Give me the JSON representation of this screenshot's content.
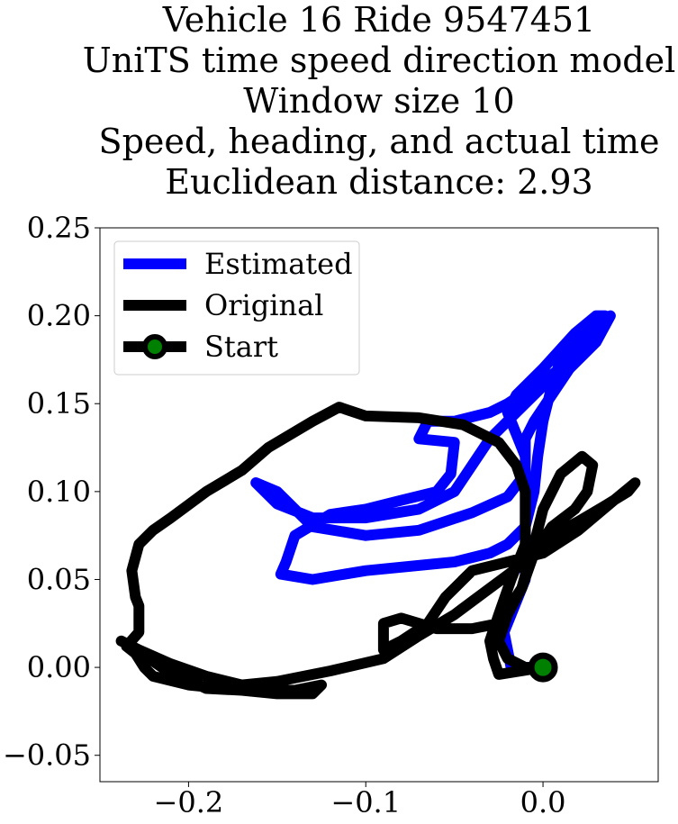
{
  "chart_data": {
    "type": "line",
    "title_lines": [
      "Vehicle 16 Ride 9547451",
      "UniTS time speed direction model",
      "Window size 10",
      "Speed, heading, and actual time",
      "Euclidean distance: 2.93"
    ],
    "xlabel": "",
    "ylabel": "",
    "xlim": [
      -0.25,
      0.065
    ],
    "ylim": [
      -0.065,
      0.25
    ],
    "xticks": [
      -0.2,
      -0.1,
      0.0
    ],
    "xtick_labels": [
      "−0.2",
      "−0.1",
      "0.0"
    ],
    "yticks": [
      -0.05,
      0.0,
      0.05,
      0.1,
      0.15,
      0.2,
      0.25
    ],
    "ytick_labels": [
      "−0.05",
      "0.00",
      "0.05",
      "0.10",
      "0.15",
      "0.20",
      "0.25"
    ],
    "grid": false,
    "legend_position": "top-left",
    "series": [
      {
        "name": "Estimated",
        "color": "#0000ff",
        "points": [
          [
            0.0,
            0.0
          ],
          [
            -0.018,
            0.0
          ],
          [
            -0.022,
            0.02
          ],
          [
            -0.01,
            0.05
          ],
          [
            -0.01,
            0.09
          ],
          [
            -0.01,
            0.12
          ],
          [
            -0.02,
            0.145
          ],
          [
            -0.015,
            0.155
          ],
          [
            0.0,
            0.17
          ],
          [
            0.018,
            0.19
          ],
          [
            0.03,
            0.2
          ],
          [
            0.035,
            0.2
          ],
          [
            0.03,
            0.19
          ],
          [
            0.015,
            0.175
          ],
          [
            0.0,
            0.16
          ],
          [
            -0.015,
            0.145
          ],
          [
            -0.03,
            0.13
          ],
          [
            -0.05,
            0.1
          ],
          [
            -0.07,
            0.09
          ],
          [
            -0.1,
            0.085
          ],
          [
            -0.13,
            0.085
          ],
          [
            -0.15,
            0.093
          ],
          [
            -0.162,
            0.105
          ],
          [
            -0.15,
            0.1
          ],
          [
            -0.135,
            0.085
          ],
          [
            -0.13,
            0.08
          ],
          [
            -0.1,
            0.075
          ],
          [
            -0.07,
            0.078
          ],
          [
            -0.04,
            0.088
          ],
          [
            -0.02,
            0.097
          ],
          [
            -0.01,
            0.11
          ],
          [
            -0.01,
            0.13
          ],
          [
            -0.005,
            0.14
          ],
          [
            0.005,
            0.155
          ],
          [
            0.015,
            0.17
          ],
          [
            0.03,
            0.185
          ],
          [
            0.038,
            0.2
          ],
          [
            0.025,
            0.185
          ],
          [
            0.01,
            0.17
          ],
          [
            -0.005,
            0.16
          ],
          [
            -0.02,
            0.15
          ],
          [
            -0.03,
            0.145
          ],
          [
            -0.05,
            0.14
          ],
          [
            -0.065,
            0.14
          ],
          [
            -0.07,
            0.13
          ],
          [
            -0.05,
            0.128
          ],
          [
            -0.052,
            0.11
          ],
          [
            -0.06,
            0.1
          ],
          [
            -0.08,
            0.095
          ],
          [
            -0.1,
            0.09
          ],
          [
            -0.12,
            0.087
          ],
          [
            -0.14,
            0.075
          ],
          [
            -0.145,
            0.06
          ],
          [
            -0.148,
            0.053
          ],
          [
            -0.13,
            0.05
          ],
          [
            -0.1,
            0.055
          ],
          [
            -0.07,
            0.058
          ],
          [
            -0.05,
            0.06
          ],
          [
            -0.03,
            0.065
          ],
          [
            -0.02,
            0.07
          ],
          [
            -0.01,
            0.08
          ],
          [
            -0.005,
            0.1
          ],
          [
            -0.003,
            0.12
          ],
          [
            0.0,
            0.14
          ],
          [
            0.005,
            0.16
          ],
          [
            0.01,
            0.175
          ],
          [
            0.02,
            0.188
          ],
          [
            0.03,
            0.2
          ]
        ]
      },
      {
        "name": "Original",
        "color": "#000000",
        "points": [
          [
            0.0,
            0.0
          ],
          [
            -0.025,
            -0.004
          ],
          [
            -0.028,
            0.005
          ],
          [
            -0.03,
            0.015
          ],
          [
            -0.025,
            0.03
          ],
          [
            -0.018,
            0.05
          ],
          [
            -0.01,
            0.07
          ],
          [
            -0.01,
            0.1
          ],
          [
            -0.015,
            0.115
          ],
          [
            -0.025,
            0.128
          ],
          [
            -0.045,
            0.138
          ],
          [
            -0.07,
            0.142
          ],
          [
            -0.1,
            0.143
          ],
          [
            -0.115,
            0.148
          ],
          [
            -0.13,
            0.14
          ],
          [
            -0.155,
            0.125
          ],
          [
            -0.17,
            0.112
          ],
          [
            -0.19,
            0.1
          ],
          [
            -0.21,
            0.085
          ],
          [
            -0.22,
            0.078
          ],
          [
            -0.228,
            0.07
          ],
          [
            -0.232,
            0.055
          ],
          [
            -0.23,
            0.04
          ],
          [
            -0.228,
            0.035
          ],
          [
            -0.228,
            0.02
          ],
          [
            -0.235,
            0.012
          ],
          [
            -0.23,
            0.008
          ],
          [
            -0.225,
            0.0
          ],
          [
            -0.22,
            -0.005
          ],
          [
            -0.2,
            -0.01
          ],
          [
            -0.18,
            -0.012
          ],
          [
            -0.16,
            -0.013
          ],
          [
            -0.14,
            -0.013
          ],
          [
            -0.125,
            -0.01
          ],
          [
            -0.13,
            -0.015
          ],
          [
            -0.15,
            -0.015
          ],
          [
            -0.17,
            -0.013
          ],
          [
            -0.19,
            -0.012
          ],
          [
            -0.205,
            -0.005
          ],
          [
            -0.215,
            0.0
          ],
          [
            -0.232,
            0.012
          ],
          [
            -0.238,
            0.015
          ],
          [
            -0.228,
            0.01
          ],
          [
            -0.21,
            0.002
          ],
          [
            -0.19,
            -0.005
          ],
          [
            -0.17,
            -0.01
          ],
          [
            -0.15,
            -0.008
          ],
          [
            -0.12,
            -0.002
          ],
          [
            -0.09,
            0.005
          ],
          [
            -0.07,
            0.018
          ],
          [
            -0.05,
            0.03
          ],
          [
            -0.03,
            0.045
          ],
          [
            -0.01,
            0.06
          ],
          [
            0.005,
            0.075
          ],
          [
            0.02,
            0.083
          ],
          [
            0.035,
            0.092
          ],
          [
            0.048,
            0.1
          ],
          [
            0.052,
            0.105
          ],
          [
            0.04,
            0.095
          ],
          [
            0.02,
            0.078
          ],
          [
            0.0,
            0.065
          ],
          [
            -0.02,
            0.06
          ],
          [
            -0.04,
            0.055
          ],
          [
            -0.055,
            0.04
          ],
          [
            -0.065,
            0.025
          ],
          [
            -0.08,
            0.015
          ],
          [
            -0.09,
            0.01
          ],
          [
            -0.09,
            0.025
          ],
          [
            -0.08,
            0.028
          ],
          [
            -0.06,
            0.022
          ],
          [
            -0.04,
            0.022
          ],
          [
            -0.025,
            0.025
          ],
          [
            -0.012,
            0.045
          ],
          [
            -0.005,
            0.07
          ],
          [
            0.0,
            0.09
          ],
          [
            0.01,
            0.11
          ],
          [
            0.022,
            0.12
          ],
          [
            0.028,
            0.115
          ],
          [
            0.025,
            0.1
          ],
          [
            0.018,
            0.09
          ],
          [
            0.005,
            0.08
          ],
          [
            -0.005,
            0.065
          ],
          [
            -0.012,
            0.045
          ],
          [
            -0.02,
            0.03
          ],
          [
            -0.025,
            0.015
          ],
          [
            -0.02,
            0.005
          ],
          [
            -0.01,
            0.0
          ],
          [
            0.0,
            0.0
          ]
        ]
      }
    ],
    "start_point": {
      "name": "Start",
      "x": 0.0,
      "y": 0.0,
      "edge_color": "#000000",
      "fill_color": "#008000"
    }
  }
}
